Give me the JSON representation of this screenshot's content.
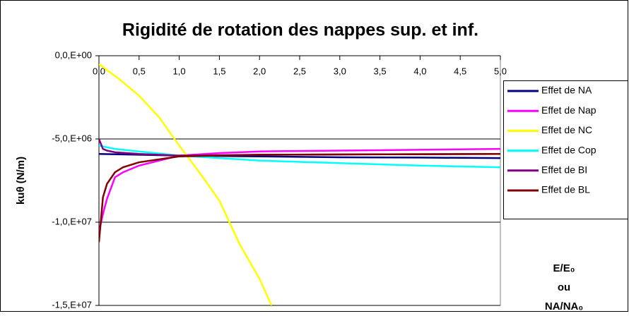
{
  "chart_data": {
    "type": "line",
    "title": "Rigidité de rotation des nappes sup. et inf.",
    "y_label": "kuθ (N/m)",
    "annotation": [
      "E/E₀",
      "ou",
      "NA/NA₀"
    ],
    "xlim": [
      0,
      5
    ],
    "xticks": [
      {
        "value": 0,
        "label": "0,0"
      },
      {
        "value": 0.5,
        "label": "0,5"
      },
      {
        "value": 1,
        "label": "1,0"
      },
      {
        "value": 1.5,
        "label": "1,5"
      },
      {
        "value": 2,
        "label": "2,0"
      },
      {
        "value": 2.5,
        "label": "2,5"
      },
      {
        "value": 3,
        "label": "3,0"
      },
      {
        "value": 3.5,
        "label": "3,5"
      },
      {
        "value": 4,
        "label": "4,0"
      },
      {
        "value": 4.5,
        "label": "4,5"
      },
      {
        "value": 5,
        "label": "5,0"
      }
    ],
    "ylim": [
      -15000000,
      0
    ],
    "yticks": [
      {
        "value": 0,
        "label": "0,0,E+00"
      },
      {
        "value": -5000000,
        "label": "-5,0,E+06"
      },
      {
        "value": -10000000,
        "label": "-1,0,E+07"
      },
      {
        "value": -15000000,
        "label": "-1,5,E+07"
      }
    ],
    "grid": true,
    "legend": "right",
    "series": [
      {
        "name": "Effet de NA",
        "color": "#000080",
        "x": [
          0,
          0.5,
          1,
          2,
          3,
          4,
          5
        ],
        "values": [
          -5900000,
          -5950000,
          -6000000,
          -6050000,
          -6100000,
          -6120000,
          -6150000
        ]
      },
      {
        "name": "Effet de Nap",
        "color": "#ff00ff",
        "x": [
          0,
          0.05,
          0.1,
          0.2,
          0.3,
          0.5,
          1,
          1.5,
          2,
          3,
          4,
          5
        ],
        "values": [
          -10600000,
          -9500000,
          -8600000,
          -7300000,
          -7000000,
          -6600000,
          -6000000,
          -5850000,
          -5750000,
          -5700000,
          -5650000,
          -5600000
        ]
      },
      {
        "name": "Effet de NC",
        "color": "#ffff00",
        "x": [
          0,
          0.25,
          0.5,
          0.75,
          1,
          1.25,
          1.5,
          1.75,
          2,
          2.15
        ],
        "values": [
          -500000,
          -1400000,
          -2400000,
          -3700000,
          -5400000,
          -7000000,
          -8700000,
          -11300000,
          -13400000,
          -15000000
        ]
      },
      {
        "name": "Effet de Cop",
        "color": "#00ffff",
        "x": [
          0,
          0.2,
          0.5,
          1,
          2,
          3,
          4,
          5
        ],
        "values": [
          -5400000,
          -5600000,
          -5750000,
          -6000000,
          -6300000,
          -6450000,
          -6600000,
          -6700000
        ]
      },
      {
        "name": "Effet de BI",
        "color": "#800080",
        "x": [
          0,
          0.05,
          0.1,
          0.2,
          0.5,
          1,
          2,
          5
        ],
        "values": [
          -5000000,
          -5600000,
          -5700000,
          -5800000,
          -5900000,
          -6000000,
          -5950000,
          -5900000
        ]
      },
      {
        "name": "Effet de BL",
        "color": "#800000",
        "x": [
          0,
          0.05,
          0.1,
          0.2,
          0.3,
          0.5,
          1,
          2,
          5
        ],
        "values": [
          -11200000,
          -8500000,
          -7700000,
          -7000000,
          -6700000,
          -6400000,
          -6050000,
          -5950000,
          -5900000
        ]
      }
    ]
  }
}
